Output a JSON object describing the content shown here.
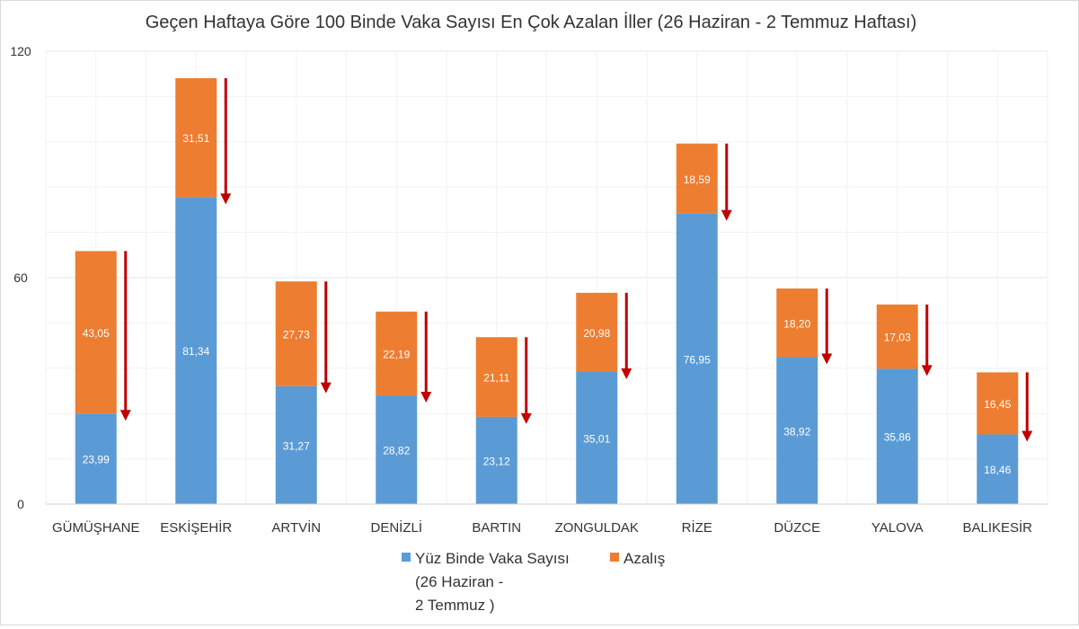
{
  "chart_data": {
    "type": "bar",
    "stacked": true,
    "title": "Geçen Haftaya Göre 100 Binde Vaka Sayısı En Çok Azalan İller (26 Haziran - 2 Temmuz Haftası)",
    "categories": [
      "GÜMÜŞHANE",
      "ESKİŞEHİR",
      "ARTVİN",
      "DENİZLİ",
      "BARTIN",
      "ZONGULDAK",
      "RİZE",
      "DÜZCE",
      "YALOVA",
      "BALIKESİR"
    ],
    "series": [
      {
        "name": "Yüz Binde Vaka Sayısı (26 Haziran - 2 Temmuz )",
        "legend_lines": [
          "Yüz Binde Vaka Sayısı",
          "(26 Haziran -",
          "2 Temmuz )"
        ],
        "color": "#5b9bd5",
        "values": [
          23.99,
          81.34,
          31.27,
          28.82,
          23.12,
          35.01,
          76.95,
          38.92,
          35.86,
          18.46
        ],
        "labels": [
          "23,99",
          "81,34",
          "31,27",
          "28,82",
          "23,12",
          "35,01",
          "76,95",
          "38,92",
          "35,86",
          "18,46"
        ]
      },
      {
        "name": "Azalış",
        "color": "#ed7d31",
        "values": [
          43.05,
          31.51,
          27.73,
          22.19,
          21.11,
          20.98,
          18.59,
          18.2,
          17.03,
          16.45
        ],
        "labels": [
          "43,05",
          "31,51",
          "27,73",
          "22,19",
          "21,11",
          "20,98",
          "18,59",
          "18,20",
          "17,03",
          "16,45"
        ]
      }
    ],
    "arrow_color": "#c00000",
    "ylim": [
      0,
      120
    ],
    "yticks": [
      "0",
      "60",
      "120"
    ],
    "grid": true,
    "legend": "bottom"
  }
}
